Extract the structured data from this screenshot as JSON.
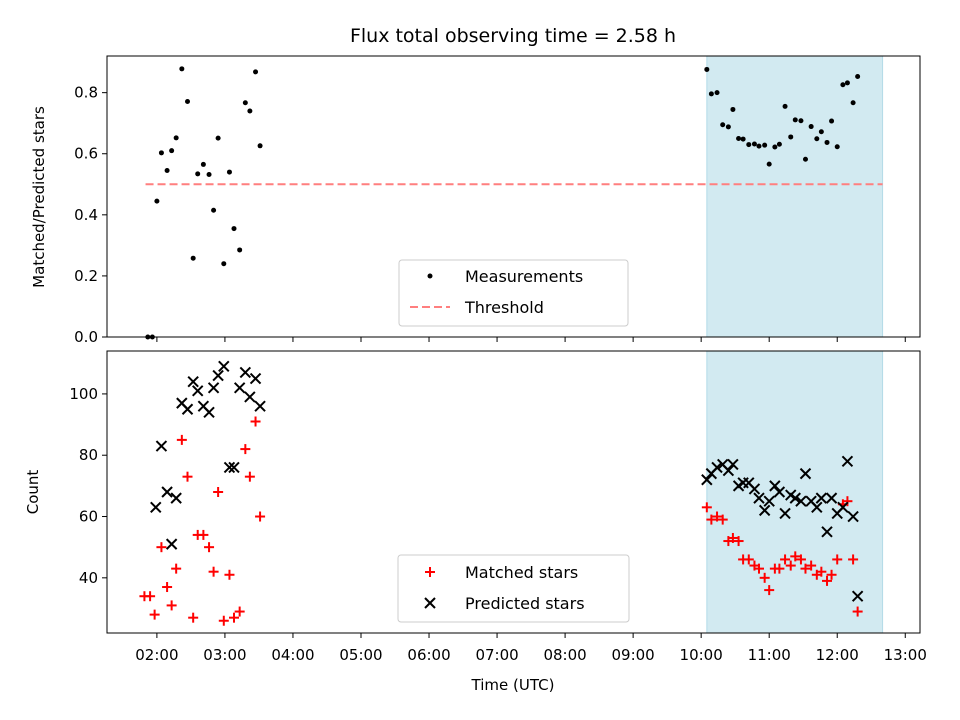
{
  "chart_data": {
    "title": "Flux total observing time = 2.58 h",
    "xlabel": "Time (UTC)",
    "x_ticks": [
      "02:00",
      "03:00",
      "04:00",
      "05:00",
      "06:00",
      "07:00",
      "08:00",
      "09:00",
      "10:00",
      "11:00",
      "12:00",
      "13:00"
    ],
    "highlight_span": {
      "start": "10:05",
      "end": "12:40",
      "color": "#add8e6"
    },
    "panels": [
      {
        "type": "scatter",
        "ylabel": "Matched/Predicted stars",
        "ylim": [
          0,
          0.92
        ],
        "y_ticks": [
          0.0,
          0.2,
          0.4,
          0.6,
          0.8
        ],
        "y_tick_labels": [
          "0.0",
          "0.2",
          "0.4",
          "0.6",
          "0.8"
        ],
        "legend_position": "lower-center",
        "threshold": {
          "name": "Threshold",
          "value": 0.5,
          "x_start": "01:50",
          "x_end": "12:40",
          "color": "#ff7f7f",
          "style": "dashed"
        },
        "series": [
          {
            "name": "Measurements",
            "marker": "dot",
            "color": "#000000",
            "points": [
              [
                "01:52",
                0.0
              ],
              [
                "01:56",
                0.0
              ],
              [
                "02:00",
                0.445
              ],
              [
                "02:04",
                0.603
              ],
              [
                "02:09",
                0.545
              ],
              [
                "02:13",
                0.61
              ],
              [
                "02:17",
                0.652
              ],
              [
                "02:22",
                0.878
              ],
              [
                "02:27",
                0.771
              ],
              [
                "02:32",
                0.258
              ],
              [
                "02:36",
                0.534
              ],
              [
                "02:41",
                0.565
              ],
              [
                "02:46",
                0.532
              ],
              [
                "02:50",
                0.415
              ],
              [
                "02:54",
                0.651
              ],
              [
                "02:59",
                0.24
              ],
              [
                "03:04",
                0.54
              ],
              [
                "03:08",
                0.355
              ],
              [
                "03:13",
                0.285
              ],
              [
                "03:18",
                0.767
              ],
              [
                "03:22",
                0.74
              ],
              [
                "03:27",
                0.868
              ],
              [
                "03:31",
                0.626
              ],
              [
                "10:05",
                0.876
              ],
              [
                "10:09",
                0.796
              ],
              [
                "10:14",
                0.8
              ],
              [
                "10:19",
                0.695
              ],
              [
                "10:24",
                0.688
              ],
              [
                "10:28",
                0.745
              ],
              [
                "10:33",
                0.65
              ],
              [
                "10:37",
                0.648
              ],
              [
                "10:42",
                0.63
              ],
              [
                "10:47",
                0.632
              ],
              [
                "10:51",
                0.625
              ],
              [
                "10:56",
                0.628
              ],
              [
                "11:00",
                0.566
              ],
              [
                "11:05",
                0.622
              ],
              [
                "11:09",
                0.631
              ],
              [
                "11:14",
                0.755
              ],
              [
                "11:19",
                0.655
              ],
              [
                "11:23",
                0.711
              ],
              [
                "11:28",
                0.708
              ],
              [
                "11:32",
                0.582
              ],
              [
                "11:37",
                0.689
              ],
              [
                "11:42",
                0.649
              ],
              [
                "11:46",
                0.672
              ],
              [
                "11:51",
                0.637
              ],
              [
                "11:55",
                0.707
              ],
              [
                "12:00",
                0.623
              ],
              [
                "12:05",
                0.826
              ],
              [
                "12:09",
                0.832
              ],
              [
                "12:14",
                0.767
              ],
              [
                "12:18",
                0.853
              ]
            ]
          }
        ]
      },
      {
        "type": "scatter",
        "ylabel": "Count",
        "ylim": [
          22,
          114
        ],
        "y_ticks": [
          40,
          60,
          80,
          100
        ],
        "y_tick_labels": [
          "40",
          "60",
          "80",
          "100"
        ],
        "legend_position": "lower-center",
        "series": [
          {
            "name": "Matched stars",
            "marker": "plus",
            "color": "#ff0000",
            "points": [
              [
                "01:49",
                34
              ],
              [
                "01:54",
                34
              ],
              [
                "01:58",
                28
              ],
              [
                "02:04",
                50
              ],
              [
                "02:09",
                37
              ],
              [
                "02:13",
                31
              ],
              [
                "02:17",
                43
              ],
              [
                "02:22",
                85
              ],
              [
                "02:27",
                73
              ],
              [
                "02:32",
                27
              ],
              [
                "02:36",
                54
              ],
              [
                "02:41",
                54
              ],
              [
                "02:46",
                50
              ],
              [
                "02:50",
                42
              ],
              [
                "02:54",
                68
              ],
              [
                "02:59",
                26
              ],
              [
                "03:04",
                41
              ],
              [
                "03:08",
                27
              ],
              [
                "03:13",
                29
              ],
              [
                "03:18",
                82
              ],
              [
                "03:22",
                73
              ],
              [
                "03:27",
                91
              ],
              [
                "03:31",
                60
              ],
              [
                "10:05",
                63
              ],
              [
                "10:09",
                59
              ],
              [
                "10:14",
                60
              ],
              [
                "10:19",
                59
              ],
              [
                "10:24",
                52
              ],
              [
                "10:28",
                53
              ],
              [
                "10:33",
                52
              ],
              [
                "10:37",
                46
              ],
              [
                "10:42",
                46
              ],
              [
                "10:47",
                44
              ],
              [
                "10:51",
                43
              ],
              [
                "10:56",
                40
              ],
              [
                "11:00",
                36
              ],
              [
                "11:05",
                43
              ],
              [
                "11:09",
                43
              ],
              [
                "11:14",
                46
              ],
              [
                "11:19",
                44
              ],
              [
                "11:23",
                47
              ],
              [
                "11:28",
                46
              ],
              [
                "11:32",
                43
              ],
              [
                "11:37",
                44
              ],
              [
                "11:42",
                41
              ],
              [
                "11:46",
                42
              ],
              [
                "11:51",
                39
              ],
              [
                "11:55",
                41
              ],
              [
                "12:00",
                46
              ],
              [
                "12:05",
                64
              ],
              [
                "12:09",
                65
              ],
              [
                "12:14",
                46
              ],
              [
                "12:18",
                29
              ]
            ]
          },
          {
            "name": "Predicted stars",
            "marker": "x",
            "color": "#000000",
            "points": [
              [
                "01:59",
                63
              ],
              [
                "02:04",
                83
              ],
              [
                "02:09",
                68
              ],
              [
                "02:13",
                51
              ],
              [
                "02:17",
                66
              ],
              [
                "02:22",
                97
              ],
              [
                "02:27",
                95
              ],
              [
                "02:32",
                104
              ],
              [
                "02:36",
                101
              ],
              [
                "02:41",
                96
              ],
              [
                "02:46",
                94
              ],
              [
                "02:50",
                102
              ],
              [
                "02:54",
                106
              ],
              [
                "02:59",
                109
              ],
              [
                "03:04",
                76
              ],
              [
                "03:08",
                76
              ],
              [
                "03:13",
                102
              ],
              [
                "03:18",
                107
              ],
              [
                "03:22",
                99
              ],
              [
                "03:27",
                105
              ],
              [
                "03:31",
                96
              ],
              [
                "10:05",
                72
              ],
              [
                "10:09",
                74
              ],
              [
                "10:14",
                76
              ],
              [
                "10:19",
                77
              ],
              [
                "10:24",
                75
              ],
              [
                "10:28",
                77
              ],
              [
                "10:33",
                70
              ],
              [
                "10:37",
                71
              ],
              [
                "10:42",
                71
              ],
              [
                "10:47",
                69
              ],
              [
                "10:51",
                66
              ],
              [
                "10:56",
                62
              ],
              [
                "11:00",
                65
              ],
              [
                "11:05",
                70
              ],
              [
                "11:09",
                68
              ],
              [
                "11:14",
                61
              ],
              [
                "11:19",
                67
              ],
              [
                "11:23",
                66
              ],
              [
                "11:28",
                65
              ],
              [
                "11:32",
                74
              ],
              [
                "11:37",
                65
              ],
              [
                "11:42",
                63
              ],
              [
                "11:46",
                66
              ],
              [
                "11:51",
                55
              ],
              [
                "11:55",
                66
              ],
              [
                "12:00",
                61
              ],
              [
                "12:05",
                63
              ],
              [
                "12:09",
                78
              ],
              [
                "12:14",
                60
              ],
              [
                "12:18",
                34
              ]
            ]
          }
        ]
      }
    ]
  }
}
